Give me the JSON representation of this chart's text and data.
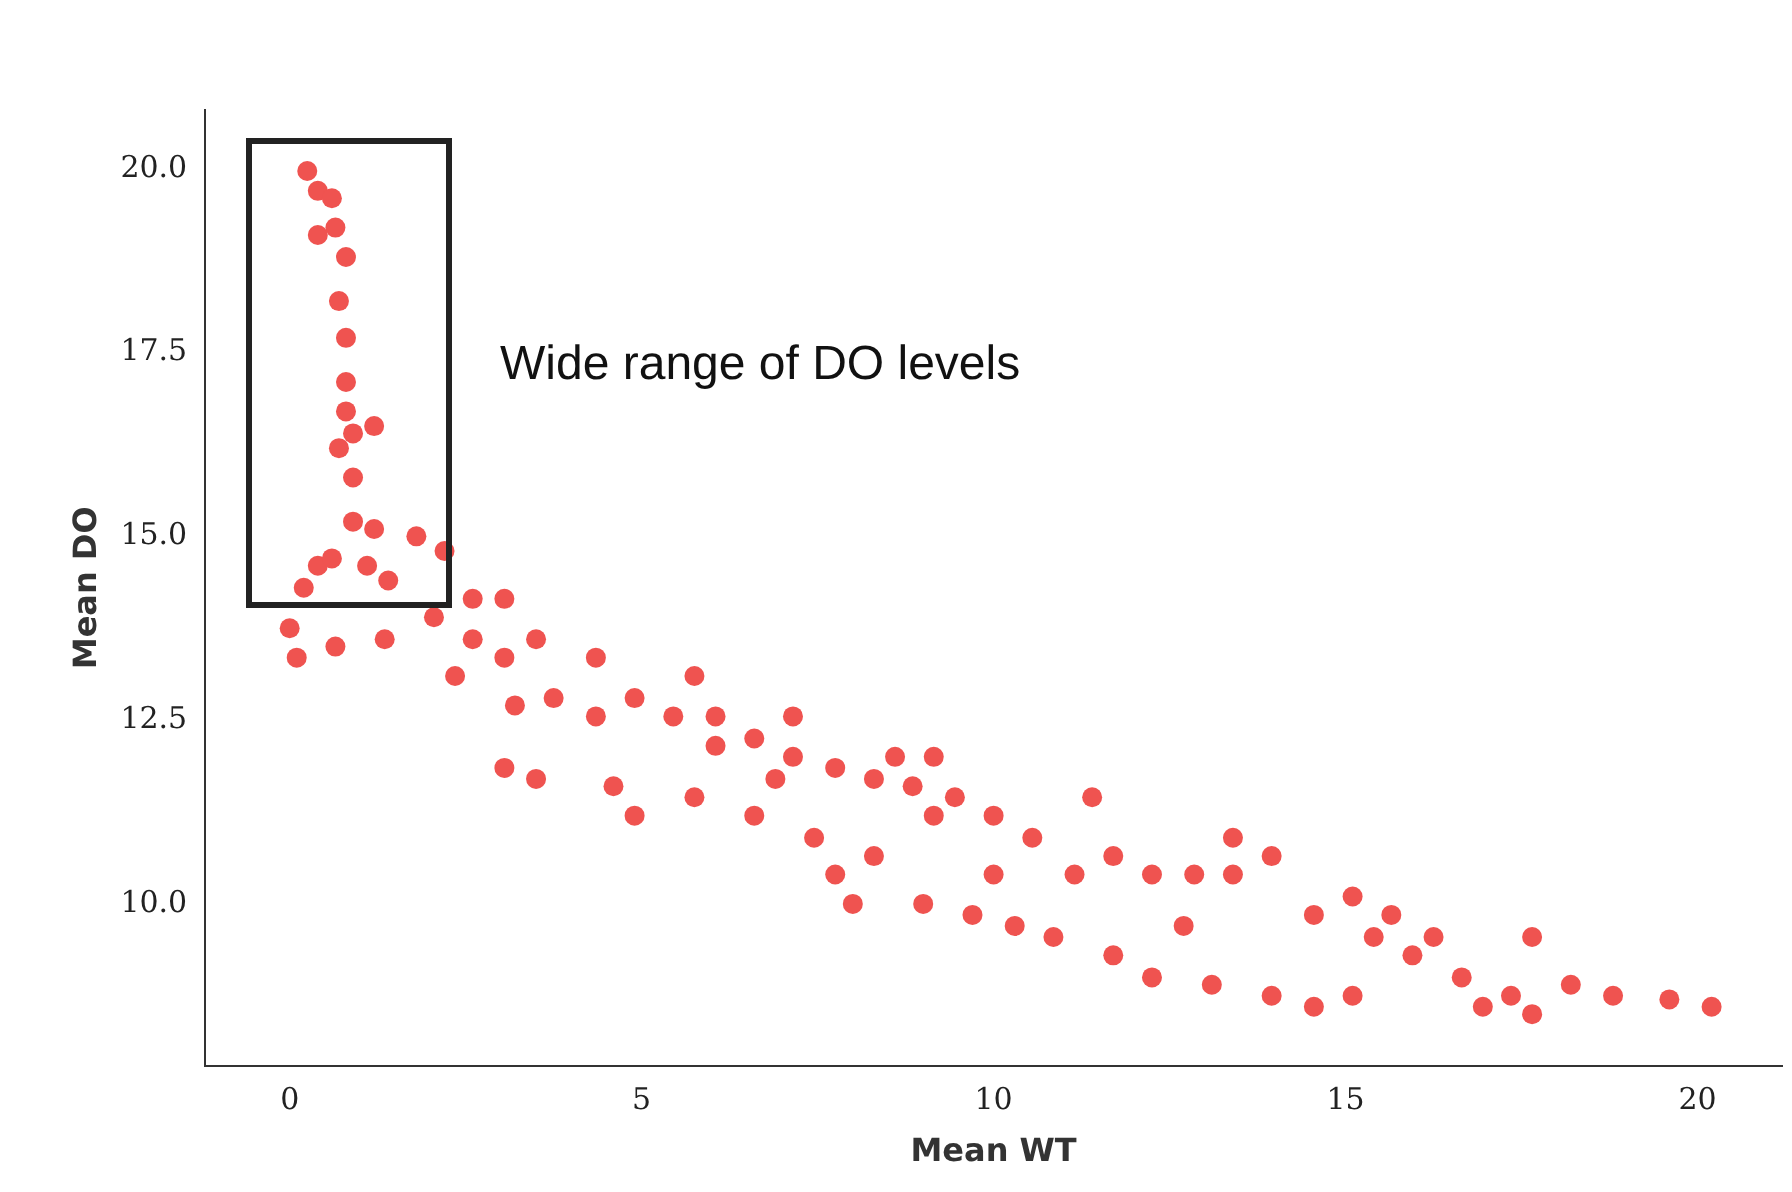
{
  "chart_data": {
    "type": "scatter",
    "xlabel": "Mean WT",
    "ylabel": "Mean DO",
    "annotations": [
      "Wide range of DO levels"
    ],
    "xlim": [
      -1.2,
      21.2
    ],
    "xticks": [
      0,
      5,
      10,
      15,
      20
    ],
    "ylim": [
      7.8,
      20.8
    ],
    "yticks": [
      {
        "value": 10,
        "label": "10.0"
      },
      {
        "value": 12.5,
        "label": "12.5"
      },
      {
        "value": 15,
        "label": "15.0"
      },
      {
        "value": 17.5,
        "label": "17.5"
      },
      {
        "value": 20,
        "label": "20.0"
      }
    ],
    "grid": false,
    "legend": false,
    "marker": "circle",
    "series": [
      {
        "color": "#ef5350",
        "x": [
          0.25,
          0.4,
          0.6,
          0.4,
          0.65,
          0.8,
          0.7,
          0.8,
          0.8,
          0.8,
          0.9,
          0.7,
          1.2,
          0.9,
          0.9,
          1.2,
          1.8,
          2.2,
          0.4,
          0.6,
          1.1,
          0.2,
          1.4,
          0,
          0.1,
          0.65,
          1.35,
          2.05,
          2.6,
          2.35,
          3.05,
          3.5,
          3.75,
          4.35,
          4.35,
          4.9,
          3.2,
          3.05,
          3.5,
          4.6,
          4.9,
          5.45,
          6.05,
          6.6,
          6.9,
          7.15,
          7.75,
          7.45,
          7.75,
          8.0,
          8.3,
          6.6,
          5.75,
          6.05,
          8.3,
          8.85,
          9.15,
          9.45,
          10.0,
          10.55,
          10.0,
          9.7,
          10.3,
          10.85,
          11.15,
          11.7,
          12.25,
          12.85,
          13.4,
          13.95,
          11.7,
          12.25,
          13.1,
          13.95,
          14.55,
          15.1,
          14.55,
          15.1,
          15.4,
          15.65,
          15.95,
          16.25,
          16.65,
          16.95,
          17.35,
          17.65,
          17.65,
          18.2,
          18.8,
          19.6,
          20.2,
          11.4,
          9.15,
          13.4,
          12.7,
          9.0,
          5.75,
          7.15,
          8.6,
          3.05,
          2.6
        ],
        "values": [
          19.97,
          19.7,
          19.6,
          19.1,
          19.2,
          18.8,
          18.2,
          17.7,
          17.1,
          16.7,
          16.4,
          16.2,
          16.5,
          15.8,
          15.2,
          15.1,
          15.0,
          14.8,
          14.6,
          14.7,
          14.6,
          14.3,
          14.4,
          13.75,
          13.35,
          13.5,
          13.6,
          13.9,
          13.6,
          13.1,
          13.35,
          13.6,
          12.8,
          13.35,
          12.55,
          12.8,
          12.7,
          11.85,
          11.7,
          11.6,
          11.2,
          12.55,
          12.15,
          12.25,
          11.7,
          12.0,
          11.85,
          10.9,
          10.4,
          10.0,
          10.65,
          11.2,
          11.45,
          12.55,
          11.7,
          11.6,
          11.2,
          11.45,
          11.2,
          10.9,
          10.4,
          9.85,
          9.7,
          9.55,
          10.4,
          10.65,
          10.4,
          10.4,
          10.4,
          10.65,
          9.3,
          9.0,
          8.9,
          8.75,
          8.6,
          8.75,
          9.85,
          10.1,
          9.55,
          9.85,
          9.3,
          9.55,
          9.0,
          8.6,
          8.75,
          8.5,
          9.55,
          8.9,
          8.75,
          8.7,
          8.6,
          11.45,
          12.0,
          10.9,
          9.7,
          10.0,
          13.1,
          12.55,
          12.0,
          14.15,
          14.15
        ]
      }
    ]
  }
}
